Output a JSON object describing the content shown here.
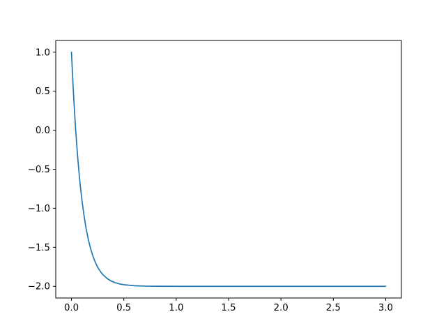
{
  "figure": {
    "background": "#ffffff",
    "axes_background": "#ffffff"
  },
  "chart_data": {
    "type": "line",
    "title": "",
    "xlabel": "",
    "ylabel": "",
    "grid": false,
    "legend": null,
    "xlim": [
      -0.15,
      3.15
    ],
    "ylim": [
      -2.15,
      1.15
    ],
    "x_ticks": [
      0.0,
      0.5,
      1.0,
      1.5,
      2.0,
      2.5,
      3.0
    ],
    "x_tick_labels": [
      "0.0",
      "0.5",
      "1.0",
      "1.5",
      "2.0",
      "2.5",
      "3.0"
    ],
    "y_ticks": [
      1.0,
      0.5,
      0.0,
      -0.5,
      -1.0,
      -1.5,
      -2.0
    ],
    "y_tick_labels": [
      "1.0",
      "0.5",
      "0.0",
      "−0.5",
      "−1.0",
      "−1.5",
      "−2.0"
    ],
    "spine_color": "#000000",
    "tick_color": "#000000",
    "series": [
      {
        "name": "line-0",
        "color": "#1f77b4",
        "line_width": 1.7,
        "points": [
          [
            0.0,
            1.0
          ],
          [
            0.01,
            0.7145
          ],
          [
            0.02,
            0.4562
          ],
          [
            0.03,
            0.2225
          ],
          [
            0.04,
            0.011
          ],
          [
            0.05,
            -0.1804
          ],
          [
            0.06,
            -0.3536
          ],
          [
            0.07,
            -0.5103
          ],
          [
            0.08,
            -0.652
          ],
          [
            0.09,
            -0.7803
          ],
          [
            0.1,
            -0.8964
          ],
          [
            0.12,
            -1.0964
          ],
          [
            0.14,
            -1.2602
          ],
          [
            0.16,
            -1.3944
          ],
          [
            0.18,
            -1.5041
          ],
          [
            0.2,
            -1.594
          ],
          [
            0.22,
            -1.6676
          ],
          [
            0.24,
            -1.7278
          ],
          [
            0.26,
            -1.7772
          ],
          [
            0.28,
            -1.8176
          ],
          [
            0.3,
            -1.8506
          ],
          [
            0.34,
            -1.8999
          ],
          [
            0.38,
            -1.9329
          ],
          [
            0.42,
            -1.955
          ],
          [
            0.46,
            -1.9699
          ],
          [
            0.5,
            -1.9798
          ],
          [
            0.6,
            -1.9926
          ],
          [
            0.7,
            -1.9973
          ],
          [
            0.8,
            -1.999
          ],
          [
            1.0,
            -1.9999
          ],
          [
            1.25,
            -2.0
          ],
          [
            1.5,
            -2.0
          ],
          [
            2.0,
            -2.0
          ],
          [
            2.5,
            -2.0
          ],
          [
            3.0,
            -2.0
          ]
        ]
      }
    ]
  }
}
